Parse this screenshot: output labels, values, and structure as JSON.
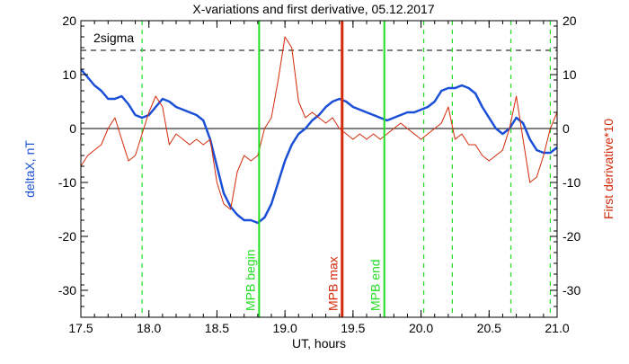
{
  "chart_data": {
    "type": "line",
    "title": "X-variations and first derivative, 05.12.2017",
    "xlabel": "UT, hours",
    "ylabel_left": "deltaX, nT",
    "ylabel_right": "First derivative*10",
    "xlim": [
      17.5,
      21.0
    ],
    "ylim": [
      -35,
      20
    ],
    "x_ticks": [
      17.5,
      18.0,
      18.5,
      19.0,
      19.5,
      20.0,
      20.5,
      21.0
    ],
    "x_tick_labels": [
      "17.5",
      "18.0",
      "18.5",
      "19.0",
      "19.5",
      "20.0",
      "20.5",
      "21.0"
    ],
    "y_ticks": [
      20,
      10,
      0,
      -10,
      -20,
      -30
    ],
    "y_tick_labels": [
      "20",
      "10",
      "0",
      "-10",
      "-20",
      "-30"
    ],
    "threshold": {
      "label": "2sigma",
      "value": 14.5,
      "color": "#000000"
    },
    "zero_line": 0,
    "colors": {
      "deltaX": "#1a4fd6",
      "derivative": "#d42a0a",
      "mpb_boundary": "#22dd22",
      "mpb_max": "#d42a0a"
    },
    "series": [
      {
        "id": "deltaX",
        "color": "#1a4fd6",
        "x": [
          17.5,
          17.55,
          17.6,
          17.65,
          17.7,
          17.75,
          17.8,
          17.85,
          17.9,
          17.95,
          18.0,
          18.05,
          18.1,
          18.15,
          18.2,
          18.25,
          18.3,
          18.35,
          18.4,
          18.45,
          18.5,
          18.55,
          18.6,
          18.65,
          18.7,
          18.75,
          18.8,
          18.85,
          18.9,
          18.95,
          19.0,
          19.05,
          19.1,
          19.15,
          19.2,
          19.25,
          19.3,
          19.35,
          19.4,
          19.45,
          19.5,
          19.55,
          19.6,
          19.65,
          19.7,
          19.75,
          19.8,
          19.85,
          19.9,
          19.95,
          20.0,
          20.05,
          20.1,
          20.15,
          20.2,
          20.25,
          20.3,
          20.35,
          20.4,
          20.45,
          20.5,
          20.55,
          20.6,
          20.65,
          20.7,
          20.75,
          20.8,
          20.85,
          20.9,
          20.95,
          21.0
        ],
        "values": [
          11,
          9.5,
          8,
          7,
          5.5,
          5.5,
          6,
          4.5,
          2.5,
          2,
          2.5,
          4,
          5.5,
          5,
          4,
          3.5,
          3,
          2.5,
          1.5,
          -2,
          -7,
          -12,
          -14.5,
          -16,
          -17,
          -17,
          -17.5,
          -16.5,
          -14,
          -10,
          -6,
          -3,
          -1,
          0,
          1.5,
          2.5,
          4,
          5,
          5.5,
          5,
          4,
          3.5,
          3,
          2.5,
          2,
          1.5,
          2,
          2.5,
          3,
          3,
          3.5,
          4,
          5,
          7,
          7.5,
          7.5,
          8,
          7.5,
          6.5,
          4,
          2,
          0,
          -1,
          0,
          2,
          1,
          -2,
          -4,
          -4.5,
          -4.5,
          -3.5
        ]
      },
      {
        "id": "derivative",
        "color": "#d42a0a",
        "x": [
          17.5,
          17.55,
          17.6,
          17.65,
          17.7,
          17.75,
          17.8,
          17.85,
          17.9,
          17.95,
          18.0,
          18.05,
          18.1,
          18.15,
          18.2,
          18.25,
          18.3,
          18.35,
          18.4,
          18.45,
          18.5,
          18.55,
          18.6,
          18.65,
          18.7,
          18.75,
          18.8,
          18.85,
          18.9,
          18.95,
          19.0,
          19.05,
          19.1,
          19.15,
          19.2,
          19.25,
          19.3,
          19.35,
          19.4,
          19.45,
          19.5,
          19.55,
          19.6,
          19.65,
          19.7,
          19.75,
          19.8,
          19.85,
          19.9,
          19.95,
          20.0,
          20.05,
          20.1,
          20.15,
          20.2,
          20.25,
          20.3,
          20.35,
          20.4,
          20.45,
          20.5,
          20.55,
          20.6,
          20.65,
          20.7,
          20.75,
          20.8,
          20.85,
          20.9,
          20.95,
          21.0
        ],
        "values": [
          -7,
          -5,
          -4,
          -3,
          0,
          2,
          -2,
          -6,
          -5,
          -1,
          3,
          6,
          4,
          -3,
          -1,
          -2,
          -3,
          -2,
          -3,
          -2,
          -10,
          -14,
          -15,
          -8,
          -5,
          -6,
          -5,
          0,
          2,
          9,
          17,
          15,
          5,
          2,
          3,
          2,
          1,
          2,
          0,
          -1,
          -2,
          -1,
          -2,
          -1,
          -2,
          -1,
          0,
          1,
          0,
          -1,
          -2,
          -1,
          0,
          1,
          4,
          -2,
          -1,
          -3,
          -3,
          -5,
          -6,
          -5,
          -4,
          0,
          6,
          -2,
          -10,
          -9,
          -5,
          0,
          3
        ]
      }
    ],
    "verticals_dashed": [
      17.95,
      20.02,
      20.23,
      20.66,
      20.95
    ],
    "markers": [
      {
        "x": 18.81,
        "label": "MPB begin",
        "color": "#22dd22"
      },
      {
        "x": 19.42,
        "label": "MPB max",
        "color": "#d42a0a"
      },
      {
        "x": 19.73,
        "label": "MPB end",
        "color": "#22dd22"
      }
    ]
  }
}
